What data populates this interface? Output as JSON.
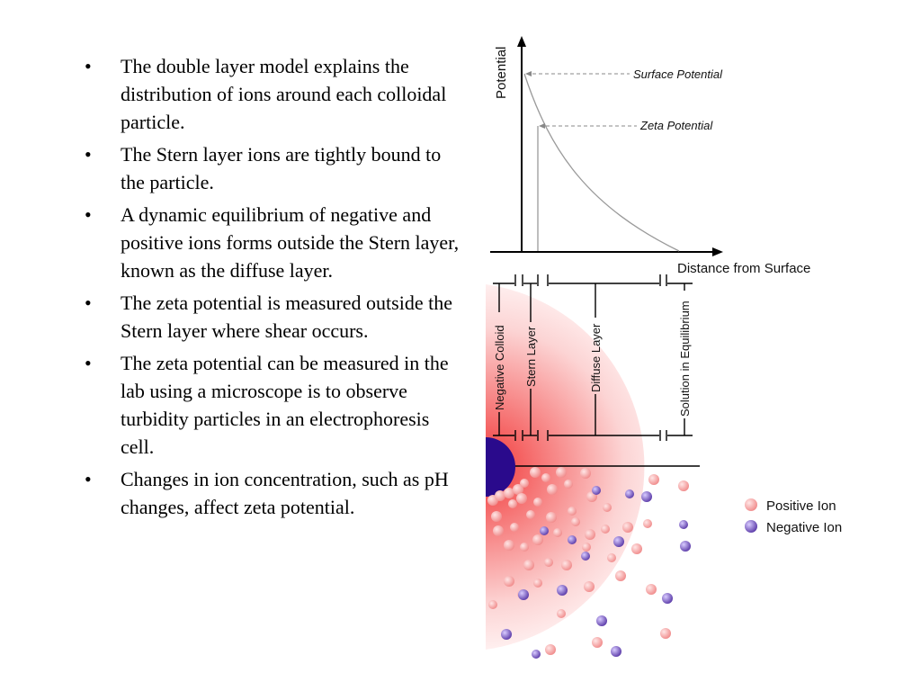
{
  "bullets": [
    "The double layer model explains the distribution of ions around each colloidal particle.",
    "The Stern layer ions are tightly bound to the particle.",
    "A dynamic equilibrium of negative and positive ions forms outside the Stern layer, known as the diffuse layer.",
    "The zeta potential is measured outside the Stern layer where shear occurs.",
    "The zeta potential can be measured in the lab using a microscope is to observe turbidity particles in an electrophoresis cell.",
    "Changes in ion concentration, such as pH changes, affect zeta potential."
  ],
  "bullet_symbol": "•",
  "diagram": {
    "y_axis_label": "Potential",
    "x_axis_label": "Distance from Surface",
    "surface_potential_label": "Surface Potential",
    "zeta_potential_label": "Zeta Potential",
    "regions": {
      "negative_colloid": "Negative Colloid",
      "stern_layer": "Stern Layer",
      "diffuse_layer": "Diffuse Layer",
      "solution": "Solution in Equilibrium"
    },
    "legend": {
      "positive": "Positive Ion",
      "negative": "Negative Ion"
    },
    "colors": {
      "colloid": "#2a0a8c",
      "positive_ion": "#f5a0a0",
      "negative_ion": "#7d58c8",
      "diffuse_glow": "#f44b4b"
    }
  }
}
